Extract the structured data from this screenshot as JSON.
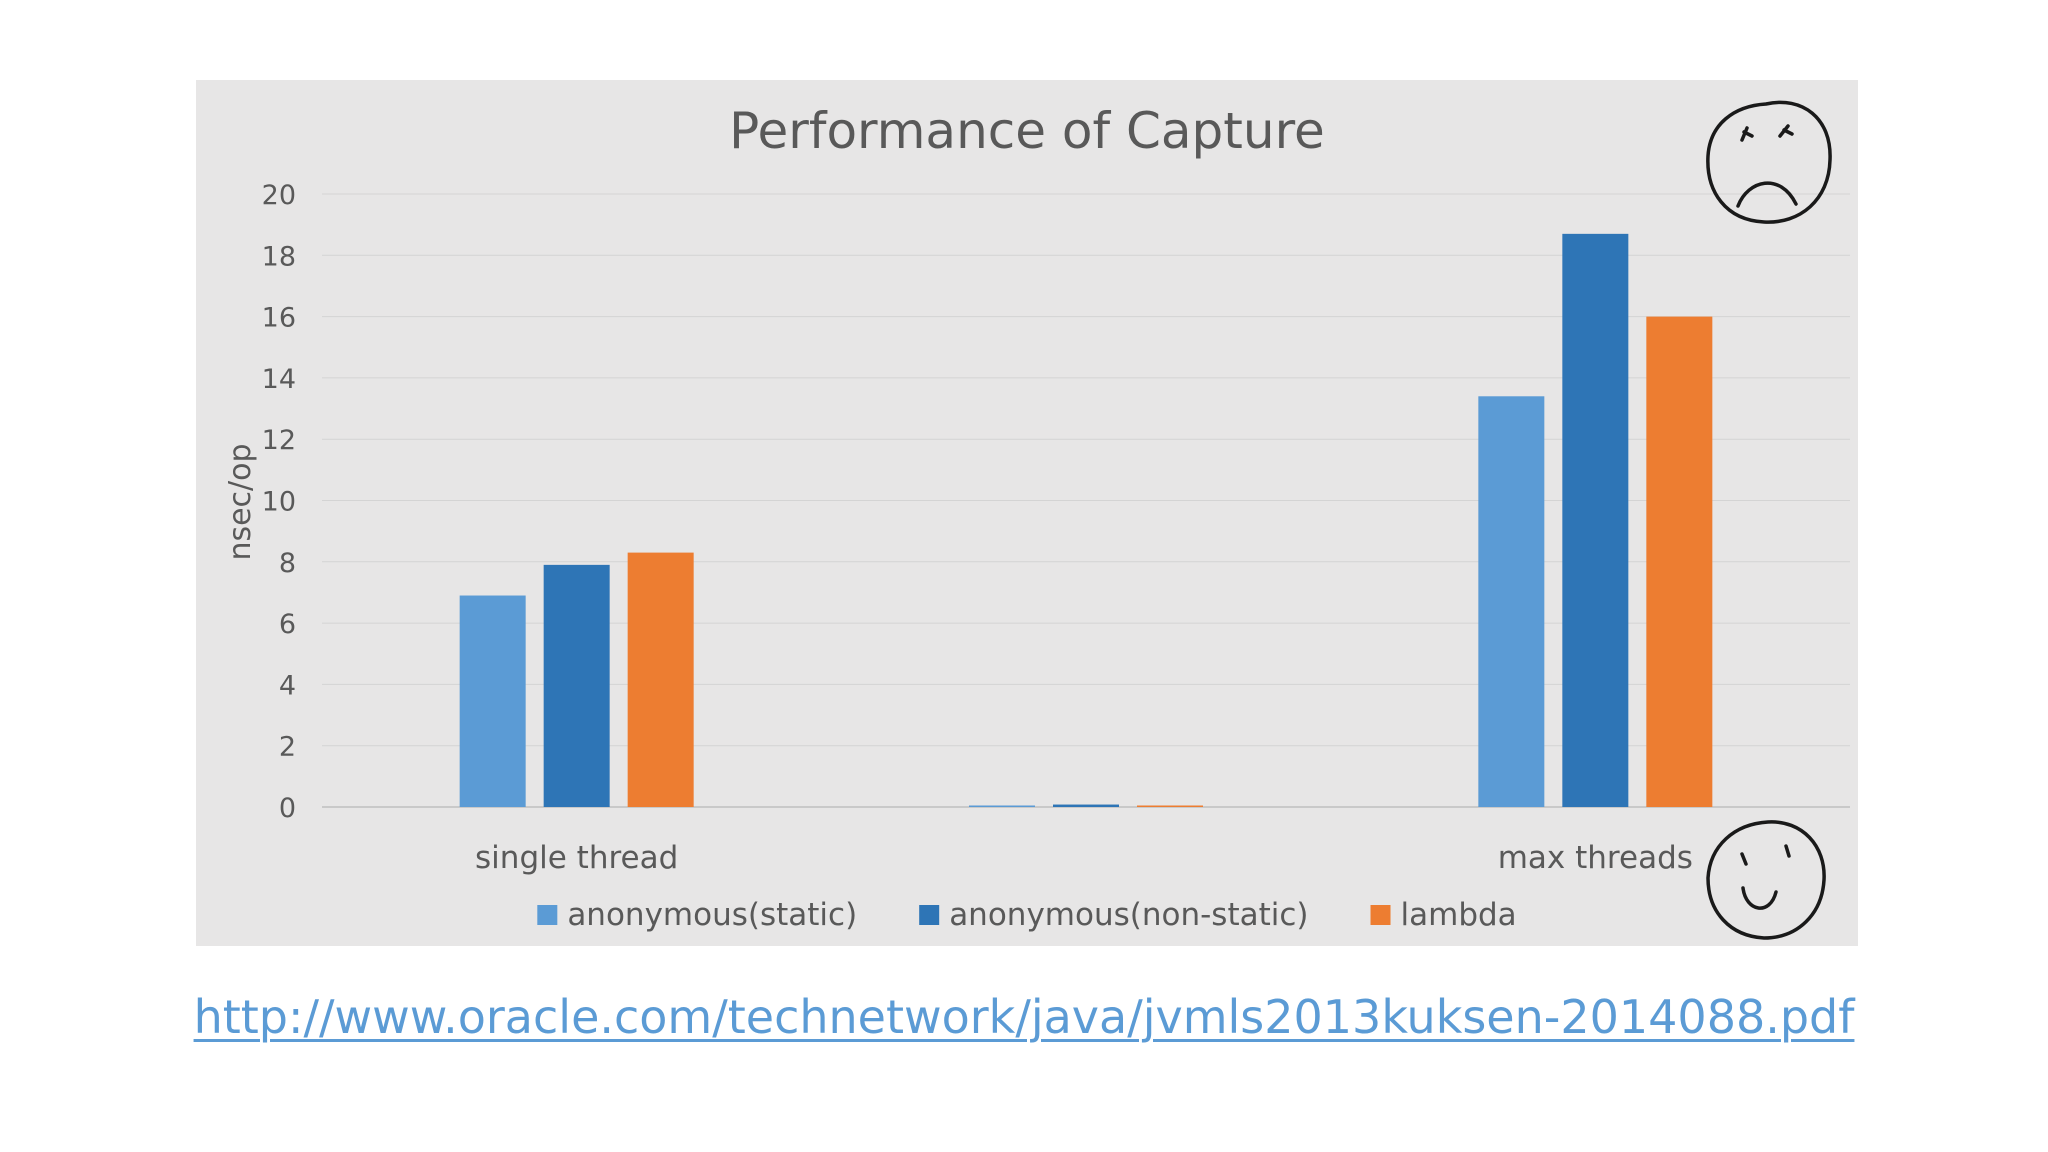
{
  "slide": {
    "link_text": "http://www.oracle.com/technetwork/java/jvmls2013kuksen-2014088.pdf"
  },
  "chart_data": {
    "type": "bar",
    "title": "Performance of Capture",
    "xlabel": "",
    "ylabel": "nsec/op",
    "ylim": [
      0,
      20
    ],
    "yticks": [
      0,
      2,
      4,
      6,
      8,
      10,
      12,
      14,
      16,
      18,
      20
    ],
    "grid": true,
    "legend_position": "bottom",
    "categories": [
      "single thread",
      "",
      "max threads"
    ],
    "series": [
      {
        "name": "anonymous(static)",
        "color": "#5b9bd5",
        "values": [
          6.9,
          0.02,
          13.4
        ]
      },
      {
        "name": "anonymous(non-static)",
        "color": "#2e75b6",
        "values": [
          7.9,
          0.08,
          18.7
        ]
      },
      {
        "name": "lambda",
        "color": "#ed7d31",
        "values": [
          8.3,
          0.03,
          16.0
        ]
      }
    ],
    "annotations": [
      {
        "kind": "frowning-face",
        "placement": "top-right"
      },
      {
        "kind": "smiling-face",
        "placement": "bottom-right"
      }
    ]
  }
}
